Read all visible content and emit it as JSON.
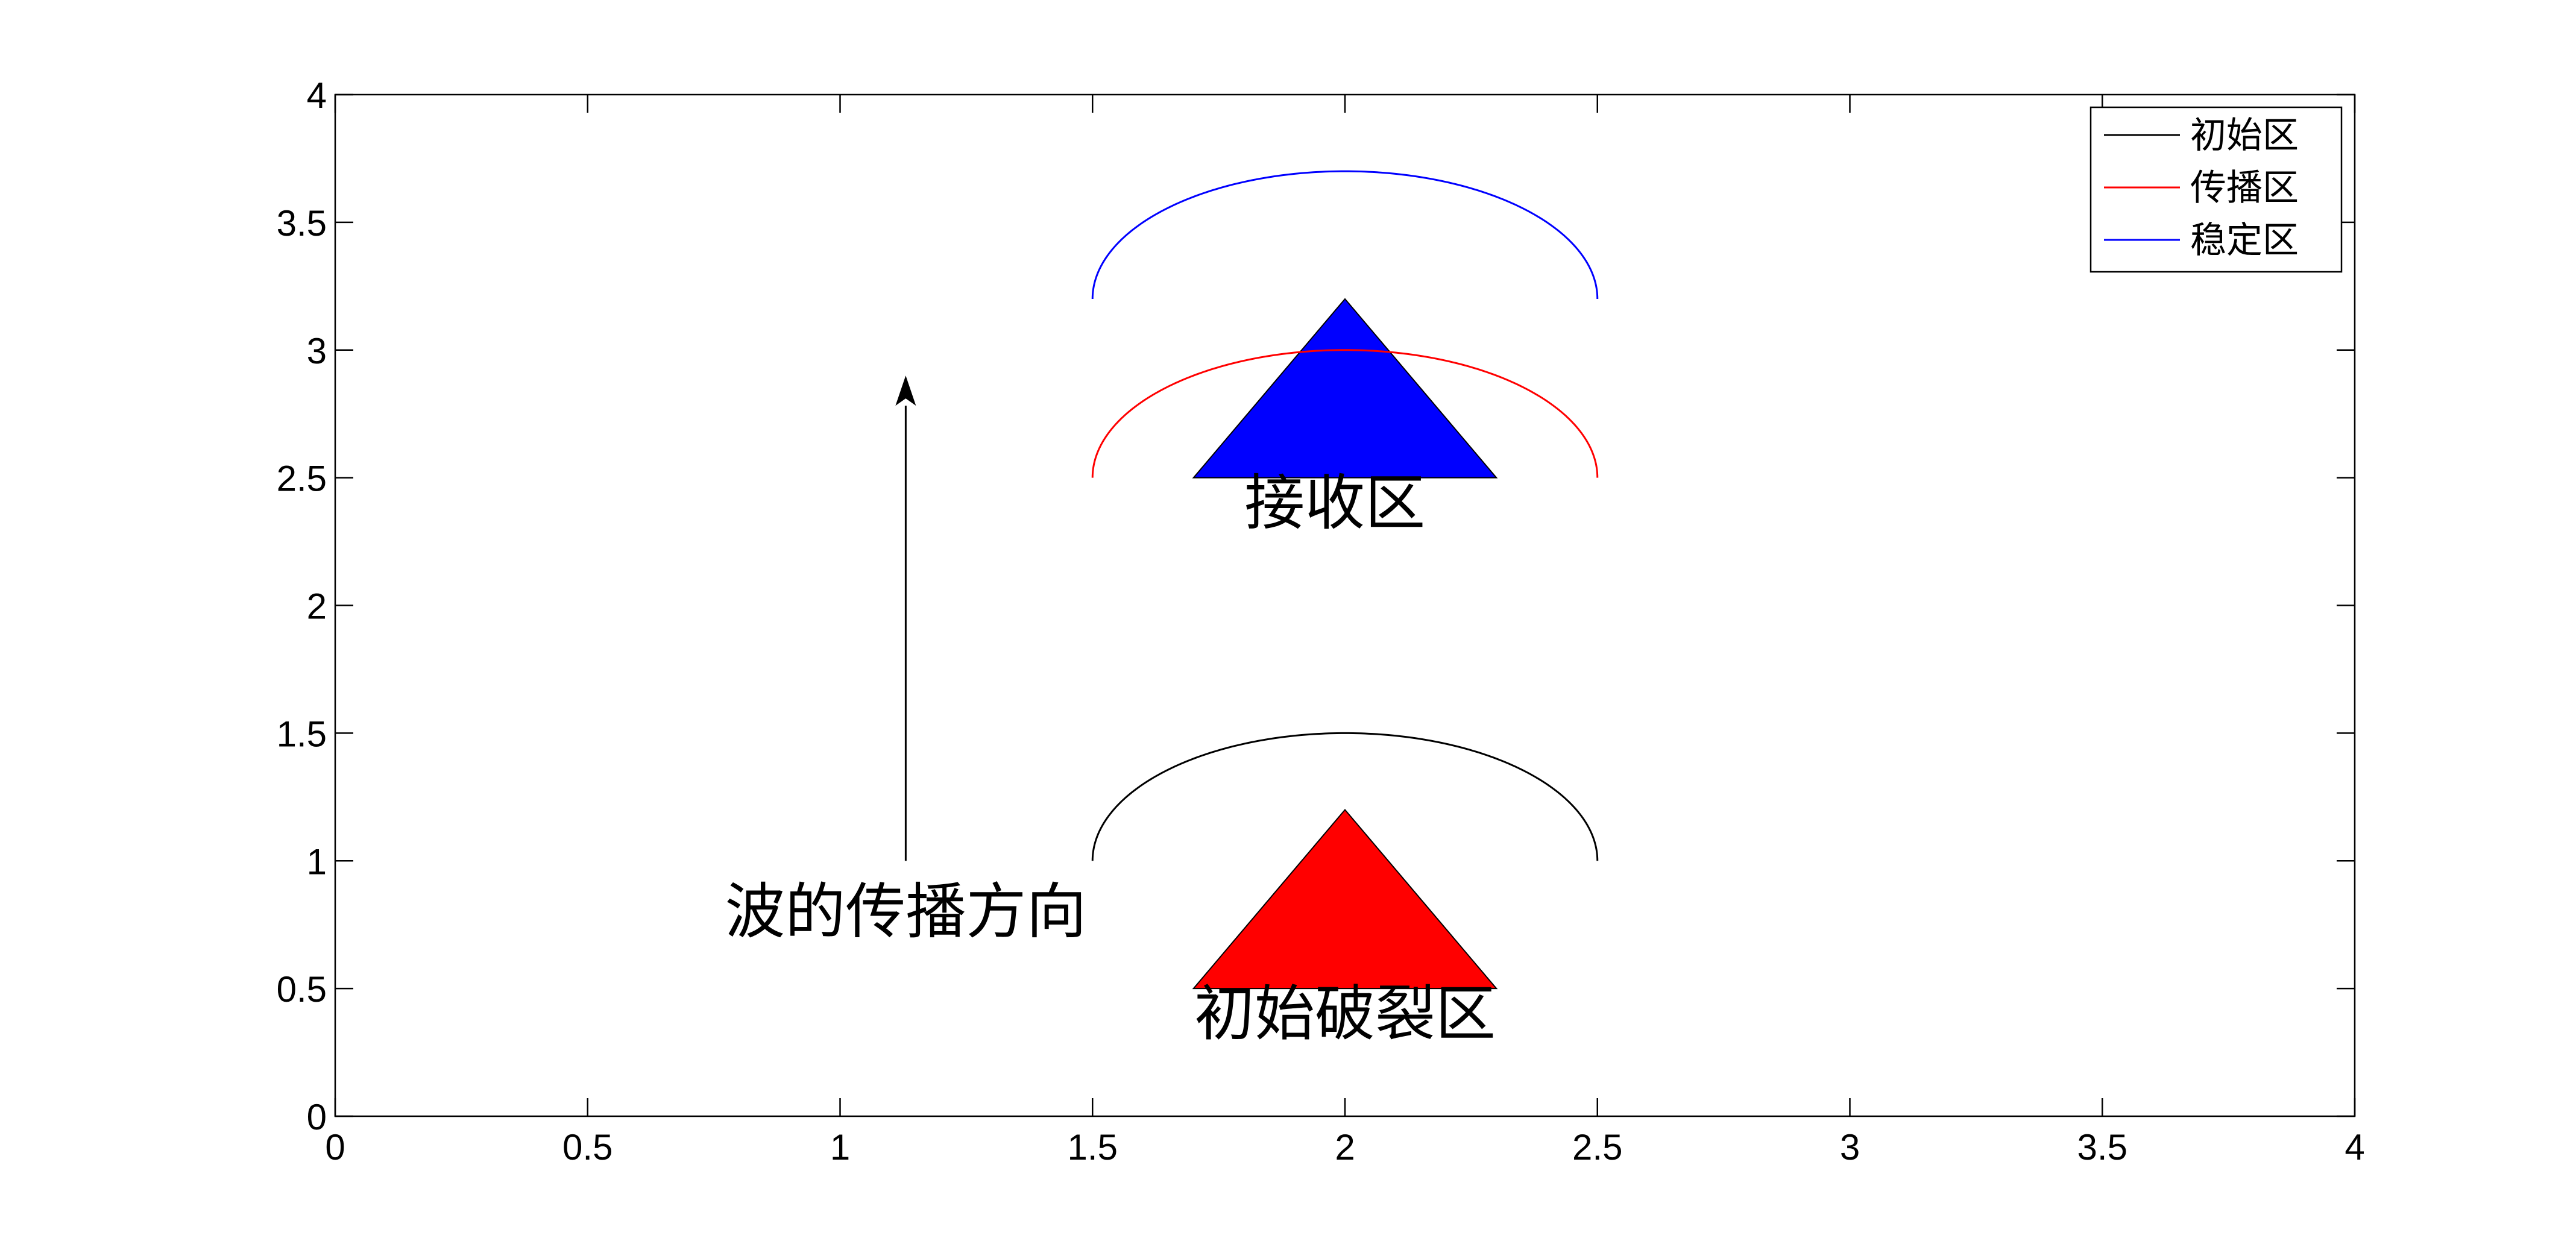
{
  "chart_data": {
    "type": "line",
    "title": "",
    "xlabel": "",
    "ylabel": "",
    "xlim": [
      0,
      4
    ],
    "ylim": [
      0,
      4
    ],
    "xticks": [
      0,
      0.5,
      1,
      1.5,
      2,
      2.5,
      3,
      3.5,
      4
    ],
    "yticks": [
      0,
      0.5,
      1,
      1.5,
      2,
      2.5,
      3,
      3.5,
      4
    ],
    "xtick_labels": [
      "0",
      "0.5",
      "1",
      "1.5",
      "2",
      "2.5",
      "3",
      "3.5",
      "4"
    ],
    "ytick_labels": [
      "0",
      "0.5",
      "1",
      "1.5",
      "2",
      "2.5",
      "3",
      "3.5",
      "4"
    ],
    "grid": false,
    "legend_position": "top-right",
    "series": [
      {
        "name": "初始区",
        "color": "#000000",
        "x_range": [
          1.5,
          2.5
        ],
        "y_ends": 1.0,
        "y_peak": 1.5
      },
      {
        "name": "传播区",
        "color": "#ff0000",
        "x_range": [
          1.5,
          2.5
        ],
        "y_ends": 2.5,
        "y_peak": 3.0
      },
      {
        "name": "稳定区",
        "color": "#0000ff",
        "x_range": [
          1.5,
          2.5
        ],
        "y_ends": 3.2,
        "y_peak": 3.7
      }
    ],
    "triangles": [
      {
        "name": "初始破裂区",
        "fill": "#ff0000",
        "vertices": [
          [
            1.7,
            0.5
          ],
          [
            2.3,
            0.5
          ],
          [
            2.0,
            1.2
          ]
        ]
      },
      {
        "name": "接收区",
        "fill": "#0000ff",
        "vertices": [
          [
            1.7,
            2.5
          ],
          [
            2.3,
            2.5
          ],
          [
            2.0,
            3.2
          ]
        ]
      }
    ],
    "arrow": {
      "from": [
        1.13,
        1.0
      ],
      "to": [
        1.13,
        2.9
      ]
    },
    "annotations": [
      {
        "text": "初始破裂区",
        "x": 2.0,
        "y": 0.4
      },
      {
        "text": "接收区",
        "x": 1.98,
        "y": 2.4
      },
      {
        "text": "波的传播方向",
        "x": 1.13,
        "y": 0.8
      }
    ]
  }
}
